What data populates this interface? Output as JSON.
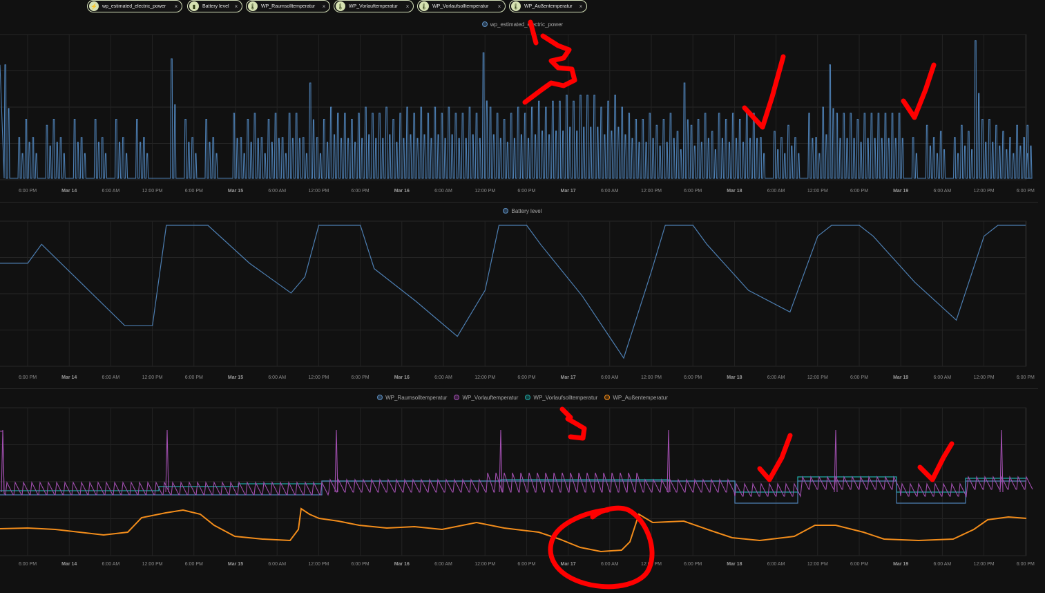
{
  "filters": [
    {
      "label": "wp_estimated_electric_power",
      "icon": "lightning-icon"
    },
    {
      "label": "Battery level",
      "icon": "battery-icon"
    },
    {
      "label": "WP_Raumsolltemperatur",
      "icon": "thermometer-icon"
    },
    {
      "label": "WP_Vorlauftemperatur",
      "icon": "thermometer-icon"
    },
    {
      "label": "WP_Vorlaufsolltemperatur",
      "icon": "thermometer-icon"
    },
    {
      "label": "WP_Außentemperatur",
      "icon": "thermometer-icon"
    }
  ],
  "remove_symbol": "×",
  "x_ticks": [
    {
      "label": "6:00 PM",
      "bold": false
    },
    {
      "label": "Mar 14",
      "bold": true
    },
    {
      "label": "6:00 AM",
      "bold": false
    },
    {
      "label": "12:00 PM",
      "bold": false
    },
    {
      "label": "6:00 PM",
      "bold": false
    },
    {
      "label": "Mar 15",
      "bold": true
    },
    {
      "label": "6:00 AM",
      "bold": false
    },
    {
      "label": "12:00 PM",
      "bold": false
    },
    {
      "label": "6:00 PM",
      "bold": false
    },
    {
      "label": "Mar 16",
      "bold": true
    },
    {
      "label": "6:00 AM",
      "bold": false
    },
    {
      "label": "12:00 PM",
      "bold": false
    },
    {
      "label": "6:00 PM",
      "bold": false
    },
    {
      "label": "Mar 17",
      "bold": true
    },
    {
      "label": "6:00 AM",
      "bold": false
    },
    {
      "label": "12:00 PM",
      "bold": false
    },
    {
      "label": "6:00 PM",
      "bold": false
    },
    {
      "label": "Mar 18",
      "bold": true
    },
    {
      "label": "6:00 AM",
      "bold": false
    },
    {
      "label": "12:00 PM",
      "bold": false
    },
    {
      "label": "6:00 PM",
      "bold": false
    },
    {
      "label": "Mar 19",
      "bold": true
    },
    {
      "label": "6:00 AM",
      "bold": false
    },
    {
      "label": "12:00 PM",
      "bold": false
    },
    {
      "label": "6:00 PM",
      "bold": false
    }
  ],
  "chart_data": [
    {
      "type": "line",
      "title": "",
      "series": [
        {
          "name": "wp_estimated_electric_power",
          "color": "#4d7fb3",
          "hours": [
            0,
            1,
            2,
            3,
            4,
            5,
            6,
            7,
            8,
            9,
            10,
            11,
            12,
            13,
            14,
            15,
            16,
            17,
            18,
            19,
            20,
            21,
            22,
            23,
            24,
            25,
            26,
            27,
            28,
            29,
            30,
            31,
            32,
            33,
            34,
            35,
            36,
            37,
            38,
            39,
            40,
            41,
            42,
            43,
            44,
            45,
            46,
            47,
            48,
            49,
            50,
            51,
            52,
            53,
            54,
            55,
            56,
            57,
            58,
            59,
            60,
            61,
            62,
            63,
            64,
            65,
            66,
            67,
            68,
            69,
            70,
            71,
            72,
            73,
            74,
            75,
            76,
            77,
            78,
            79,
            80,
            81,
            82,
            83,
            84,
            85,
            86,
            87,
            88,
            89,
            90,
            91,
            92,
            93,
            94,
            95,
            96,
            97,
            98,
            99,
            100,
            101,
            102,
            103,
            104,
            105,
            106,
            107,
            108,
            109,
            110,
            111,
            112,
            113,
            114,
            115,
            116,
            117,
            118,
            119,
            120,
            121,
            122,
            123,
            124,
            125,
            126,
            127,
            128,
            129,
            130,
            131,
            132,
            133,
            134,
            135,
            136,
            137,
            138,
            139,
            140,
            141,
            142,
            143,
            144,
            145,
            146,
            147,
            148
          ],
          "values": [
            0.95,
            0.0,
            0.35,
            0.5,
            0.35,
            0.0,
            0.45,
            0.5,
            0.35,
            0.0,
            0.5,
            0.35,
            0.0,
            0.5,
            0.35,
            0.0,
            0.5,
            0.35,
            0.0,
            0.5,
            0.35,
            0.0,
            0.0,
            0.0,
            1.0,
            0.0,
            0.5,
            0.35,
            0.0,
            0.5,
            0.35,
            0.0,
            0.0,
            0.55,
            0.35,
            0.5,
            0.55,
            0.35,
            0.5,
            0.55,
            0.35,
            0.55,
            0.55,
            0.35,
            0.8,
            0.35,
            0.5,
            0.6,
            0.55,
            0.55,
            0.5,
            0.55,
            0.6,
            0.55,
            0.55,
            0.6,
            0.5,
            0.55,
            0.6,
            0.55,
            0.6,
            0.55,
            0.6,
            0.55,
            0.6,
            0.55,
            0.55,
            0.6,
            0.55,
            1.05,
            0.6,
            0.55,
            0.5,
            0.55,
            0.6,
            0.55,
            0.6,
            0.65,
            0.6,
            0.65,
            0.65,
            0.7,
            0.65,
            0.7,
            0.7,
            0.7,
            0.6,
            0.65,
            0.7,
            0.6,
            0.55,
            0.5,
            0.5,
            0.55,
            0.45,
            0.5,
            0.55,
            0.4,
            0.8,
            0.45,
            0.5,
            0.55,
            0.4,
            0.55,
            0.5,
            0.55,
            0.5,
            0.55,
            0.55,
            0.35,
            0.0,
            0.4,
            0.35,
            0.45,
            0.35,
            0.0,
            0.55,
            0.35,
            0.6,
            0.95,
            0.55,
            0.55,
            0.55,
            0.5,
            0.55,
            0.55,
            0.55,
            0.55,
            0.55,
            0.55,
            0.0,
            0.35,
            0.0,
            0.45,
            0.35,
            0.4,
            0.0,
            0.35,
            0.45,
            0.4,
            1.15,
            0.5,
            0.5,
            0.45,
            0.4,
            0.35,
            0.45,
            0.35,
            0.45
          ],
          "ylim": [
            0,
            1.2
          ]
        }
      ]
    },
    {
      "type": "line",
      "title": "",
      "series": [
        {
          "name": "Battery level",
          "color": "#4d7fb3",
          "hours": [
            0,
            4,
            6,
            12,
            18,
            22,
            24,
            30,
            36,
            42,
            44,
            46,
            48,
            52,
            54,
            60,
            66,
            70,
            72,
            76,
            78,
            84,
            90,
            94,
            96,
            100,
            102,
            108,
            114,
            118,
            120,
            124,
            126,
            132,
            138,
            142,
            144,
            148
          ],
          "values": [
            72,
            72,
            86,
            56,
            26,
            26,
            100,
            100,
            72,
            50,
            62,
            100,
            100,
            100,
            68,
            44,
            18,
            52,
            100,
            100,
            86,
            48,
            2,
            66,
            100,
            100,
            86,
            52,
            36,
            92,
            100,
            100,
            92,
            58,
            30,
            92,
            100,
            100
          ],
          "ylim": [
            0,
            100
          ]
        }
      ]
    },
    {
      "type": "line",
      "title": "",
      "series": [
        {
          "name": "WP_Raumsolltemperatur",
          "color": "#4d7fb3",
          "hours": [
            0,
            148
          ],
          "values": [],
          "ylim": [
            0,
            100
          ]
        },
        {
          "name": "WP_Vorlauftemperatur",
          "color": "#a24fb0",
          "hours": [
            0,
            148
          ],
          "values": [],
          "ylim": [
            0,
            100
          ]
        },
        {
          "name": "WP_Vorlaufsolltemperatur",
          "color": "#1fa8a6",
          "hours": [
            0,
            148
          ],
          "values": [],
          "ylim": [
            0,
            100
          ]
        },
        {
          "name": "WP_Außentemperatur",
          "color": "#f38d1b",
          "hours": [
            0,
            148
          ],
          "values": [],
          "ylim": [
            0,
            100
          ]
        }
      ]
    }
  ]
}
